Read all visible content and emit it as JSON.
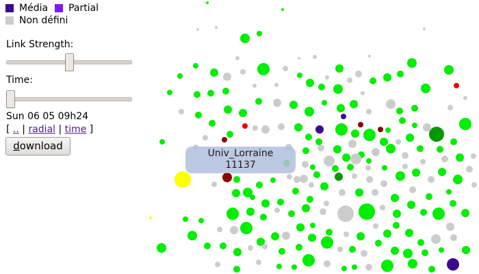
{
  "legend": {
    "items": [
      {
        "label": "Média",
        "color": "#3a0a8c"
      },
      {
        "label": "Partial",
        "color": "#7c1cf2"
      },
      {
        "label": "Non défini",
        "color": "#cccccc"
      }
    ]
  },
  "controls": {
    "link_strength_label": "Link Strength:",
    "link_strength_value": 0.5,
    "time_label": "Time:",
    "time_value": 0.0,
    "datetime_text": "Sun 06 05 09h24",
    "nav": {
      "open_bracket": "[ ",
      "sep1": " | ",
      "sep2": " | ",
      "close_bracket": " ]",
      "up_link": "..",
      "radial_link": "radial",
      "time_link": "time"
    },
    "download_first": "d",
    "download_rest": "ownload"
  },
  "tooltip": {
    "name": "Univ_Lorraine",
    "value": "11137"
  },
  "graph": {
    "colors": {
      "green": "#00ee00",
      "dark_green": "#009900",
      "grey": "#cccccc",
      "dark_red": "#8b0000",
      "red": "#ee0000",
      "purple": "#3a0a8c",
      "yellow": "#ffff00"
    }
  }
}
